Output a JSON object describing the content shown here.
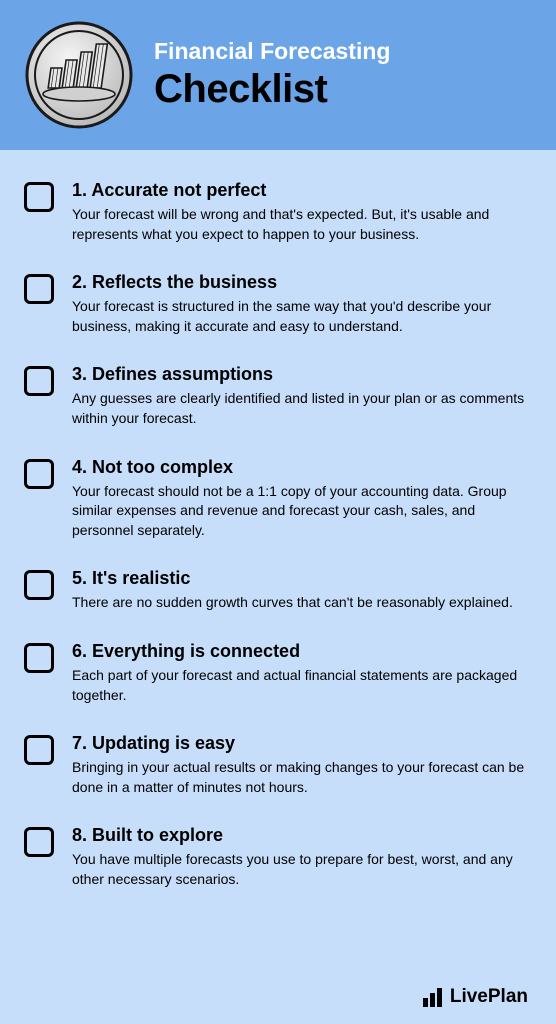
{
  "header": {
    "pretitle": "Financial Forecasting",
    "title": "Checklist",
    "bg_color": "#6ba5e8",
    "pretitle_color": "#ffffff",
    "title_color": "#000000"
  },
  "body_bg_color": "#c6def9",
  "checklist": [
    {
      "title": "1. Accurate not perfect",
      "description": "Your forecast will be wrong and that's expected. But, it's usable and represents what you expect to happen to your business."
    },
    {
      "title": "2. Reflects the business",
      "description": "Your forecast is structured in the same way that you'd describe your business, making it accurate and easy to understand."
    },
    {
      "title": "3. Defines assumptions",
      "description": "Any guesses are clearly identified and listed in your plan or as comments within your forecast."
    },
    {
      "title": "4. Not too complex",
      "description": "Your forecast should not be a 1:1 copy of your accounting data. Group similar expenses and revenue and forecast your cash, sales, and personnel separately."
    },
    {
      "title": "5. It's realistic",
      "description": "There are no sudden growth curves that can't be reasonably explained."
    },
    {
      "title": "6. Everything is connected",
      "description": "Each part of your forecast and actual financial statements are packaged together."
    },
    {
      "title": "7. Updating is easy",
      "description": "Bringing in your actual results or making changes to your forecast can be done in a matter of minutes not hours."
    },
    {
      "title": "8. Built to explore",
      "description": "You have multiple forecasts you use to prepare for best, worst, and any other necessary scenarios."
    }
  ],
  "footer": {
    "brand": "LivePlan"
  }
}
